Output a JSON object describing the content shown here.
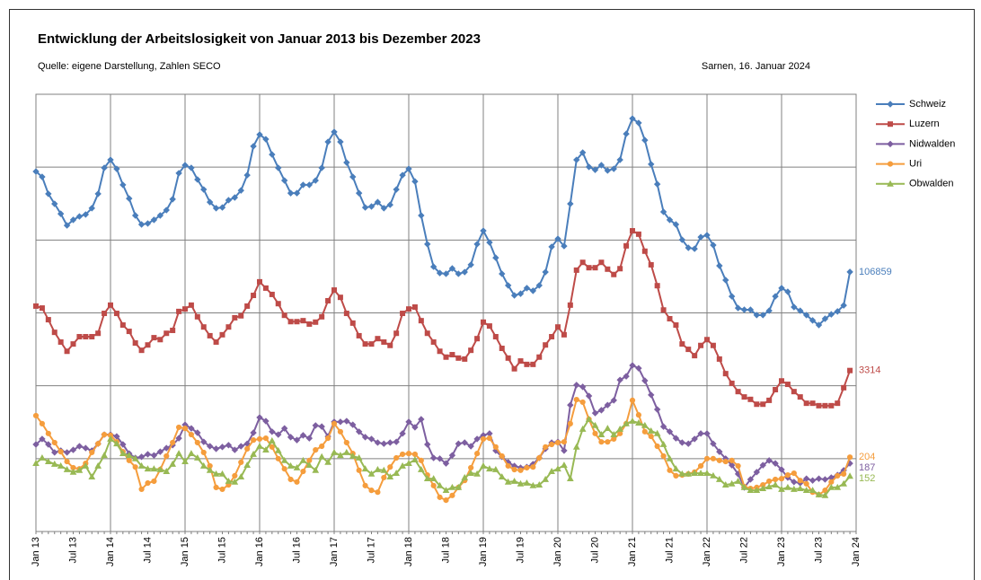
{
  "chart_data": {
    "type": "line",
    "title": "Entwicklung der Arbeitslosigkeit von Januar 2013 bis Dezember 2023",
    "subtitle": "Quelle: eigene Darstellung, Zahlen SECO",
    "note": "Sarnen, 16. Januar 2024",
    "grid": true,
    "legend": "right",
    "categories": [
      "Jan 13",
      null,
      null,
      null,
      null,
      null,
      "Jul 13",
      null,
      null,
      null,
      null,
      null,
      "Jan 14",
      null,
      null,
      null,
      null,
      null,
      "Jul 14",
      null,
      null,
      null,
      null,
      null,
      "Jan 15",
      null,
      null,
      null,
      null,
      null,
      "Jul 15",
      null,
      null,
      null,
      null,
      null,
      "Jan 16",
      null,
      null,
      null,
      null,
      null,
      "Jul 16",
      null,
      null,
      null,
      null,
      null,
      "Jan 17",
      null,
      null,
      null,
      null,
      null,
      "Jul 17",
      null,
      null,
      null,
      null,
      null,
      "Jan 18",
      null,
      null,
      null,
      null,
      null,
      "Jul 18",
      null,
      null,
      null,
      null,
      null,
      "Jan 19",
      null,
      null,
      null,
      null,
      null,
      "Jul 19",
      null,
      null,
      null,
      null,
      null,
      "Jan 20",
      null,
      null,
      null,
      null,
      null,
      "Jul 20",
      null,
      null,
      null,
      null,
      null,
      "Jan 21",
      null,
      null,
      null,
      null,
      null,
      "Jul 21",
      null,
      null,
      null,
      null,
      null,
      "Jan 22",
      null,
      null,
      null,
      null,
      null,
      "Jul 22",
      null,
      null,
      null,
      null,
      null,
      "Jan 23",
      null,
      null,
      null,
      null,
      null,
      "Jul 23",
      null,
      null,
      null,
      null,
      null,
      "Jan 24"
    ],
    "series": [
      {
        "name": "Schweiz",
        "color": "#4a7ebb",
        "marker": "diamond",
        "ylim": [
          0,
          180000
        ],
        "values": [
          148200,
          146000,
          139000,
          134900,
          130800,
          126000,
          128300,
          129700,
          130500,
          133100,
          139000,
          149700,
          153000,
          149300,
          142700,
          137100,
          130100,
          126400,
          126800,
          128300,
          130100,
          132300,
          136800,
          147500,
          150800,
          149700,
          144900,
          140800,
          135600,
          133100,
          133400,
          136400,
          137500,
          140400,
          146700,
          158600,
          163400,
          161500,
          155200,
          149700,
          144500,
          139300,
          139300,
          142700,
          142700,
          144500,
          149700,
          160400,
          164500,
          160400,
          151900,
          146000,
          139300,
          133400,
          133800,
          135600,
          133100,
          134500,
          140800,
          146700,
          149300,
          144100,
          130100,
          118300,
          109000,
          106400,
          106100,
          108300,
          106100,
          106800,
          109800,
          118300,
          123800,
          119000,
          112700,
          106100,
          101300,
          97200,
          97900,
          100200,
          99100,
          101300,
          106800,
          117200,
          120500,
          117500,
          134900,
          153000,
          156000,
          150100,
          148900,
          150800,
          148600,
          149300,
          153000,
          163700,
          170000,
          168200,
          161100,
          151200,
          143000,
          131600,
          128300,
          126400,
          120100,
          116800,
          116400,
          121200,
          122000,
          117900,
          109400,
          103500,
          96800,
          92000,
          91300,
          91300,
          89100,
          89100,
          90900,
          96800,
          100200,
          98700,
          92400,
          90900,
          89100,
          86900,
          85000,
          87600,
          89400,
          90600,
          93100,
          106859,
          null
        ]
      },
      {
        "name": "Luzern",
        "color": "#be4b48",
        "marker": "square",
        "ylim": [
          0,
          9000
        ],
        "values": [
          4640,
          4600,
          4360,
          4100,
          3900,
          3710,
          3860,
          4010,
          4010,
          4010,
          4080,
          4490,
          4660,
          4490,
          4250,
          4120,
          3880,
          3730,
          3840,
          3990,
          3950,
          4080,
          4140,
          4530,
          4580,
          4660,
          4420,
          4210,
          4030,
          3900,
          4050,
          4210,
          4400,
          4440,
          4640,
          4860,
          5140,
          5010,
          4880,
          4690,
          4450,
          4320,
          4320,
          4340,
          4270,
          4310,
          4420,
          4750,
          4970,
          4820,
          4490,
          4290,
          4030,
          3860,
          3860,
          3970,
          3900,
          3830,
          4080,
          4490,
          4580,
          4620,
          4340,
          4080,
          3900,
          3710,
          3590,
          3640,
          3570,
          3550,
          3730,
          3970,
          4310,
          4230,
          4010,
          3770,
          3570,
          3350,
          3510,
          3440,
          3440,
          3590,
          3840,
          4010,
          4210,
          4050,
          4660,
          5380,
          5540,
          5430,
          5430,
          5540,
          5400,
          5290,
          5410,
          5880,
          6190,
          6120,
          5770,
          5490,
          5060,
          4560,
          4380,
          4250,
          3860,
          3750,
          3620,
          3830,
          3950,
          3830,
          3550,
          3250,
          3050,
          2880,
          2770,
          2720,
          2620,
          2620,
          2700,
          2920,
          3100,
          3030,
          2880,
          2770,
          2640,
          2640,
          2590,
          2590,
          2590,
          2640,
          2960,
          3314,
          null
        ]
      },
      {
        "name": "Nidwalden",
        "color": "#7d5fa0",
        "marker": "diamond",
        "ylim": [
          0,
          1200
        ],
        "values": [
          239,
          254,
          239,
          217,
          222,
          217,
          224,
          234,
          229,
          222,
          241,
          266,
          266,
          261,
          239,
          214,
          202,
          205,
          212,
          209,
          219,
          229,
          237,
          256,
          293,
          283,
          271,
          246,
          234,
          227,
          232,
          237,
          224,
          234,
          241,
          271,
          313,
          303,
          274,
          266,
          283,
          259,
          251,
          264,
          256,
          291,
          288,
          261,
          301,
          301,
          303,
          293,
          274,
          259,
          254,
          244,
          241,
          244,
          246,
          269,
          301,
          286,
          308,
          239,
          202,
          200,
          187,
          209,
          241,
          244,
          234,
          254,
          264,
          269,
          222,
          205,
          190,
          180,
          175,
          177,
          185,
          202,
          227,
          244,
          246,
          222,
          347,
          402,
          397,
          372,
          325,
          333,
          347,
          360,
          416,
          426,
          456,
          448,
          414,
          375,
          335,
          288,
          274,
          256,
          244,
          241,
          254,
          269,
          269,
          241,
          219,
          200,
          182,
          158,
          121,
          143,
          163,
          182,
          195,
          187,
          170,
          148,
          136,
          133,
          145,
          140,
          145,
          143,
          148,
          155,
          168,
          187,
          null
        ]
      },
      {
        "name": "Uri",
        "color": "#f59d3d",
        "marker": "circle",
        "ylim": [
          0,
          1200
        ],
        "values": [
          318,
          296,
          269,
          244,
          219,
          192,
          175,
          172,
          187,
          217,
          241,
          266,
          264,
          246,
          219,
          195,
          177,
          116,
          133,
          138,
          170,
          207,
          244,
          286,
          283,
          266,
          244,
          217,
          180,
          121,
          116,
          128,
          153,
          190,
          227,
          251,
          254,
          256,
          232,
          200,
          172,
          143,
          136,
          165,
          195,
          224,
          234,
          256,
          296,
          274,
          244,
          214,
          168,
          126,
          113,
          108,
          148,
          177,
          202,
          212,
          214,
          212,
          195,
          155,
          126,
          94,
          86,
          99,
          121,
          140,
          175,
          214,
          254,
          256,
          232,
          207,
          180,
          170,
          168,
          175,
          177,
          202,
          232,
          239,
          244,
          246,
          296,
          362,
          355,
          308,
          269,
          246,
          246,
          254,
          269,
          296,
          360,
          320,
          274,
          261,
          234,
          207,
          168,
          153,
          155,
          158,
          163,
          180,
          200,
          200,
          195,
          192,
          195,
          180,
          123,
          118,
          121,
          128,
          138,
          143,
          145,
          155,
          160,
          140,
          131,
          108,
          101,
          113,
          136,
          153,
          158,
          204,
          null
        ]
      },
      {
        "name": "Obwalden",
        "color": "#98b954",
        "marker": "triangle",
        "ylim": [
          0,
          1200
        ],
        "values": [
          187,
          202,
          192,
          185,
          180,
          170,
          163,
          168,
          180,
          150,
          180,
          209,
          254,
          241,
          214,
          209,
          200,
          180,
          172,
          172,
          170,
          165,
          185,
          214,
          192,
          214,
          202,
          180,
          168,
          158,
          158,
          138,
          136,
          150,
          182,
          212,
          234,
          224,
          249,
          222,
          195,
          180,
          175,
          195,
          182,
          168,
          205,
          190,
          217,
          209,
          217,
          207,
          202,
          172,
          158,
          170,
          168,
          150,
          160,
          180,
          187,
          197,
          170,
          145,
          145,
          126,
          113,
          121,
          121,
          148,
          160,
          158,
          180,
          172,
          170,
          150,
          136,
          138,
          131,
          133,
          126,
          128,
          143,
          165,
          172,
          182,
          145,
          232,
          281,
          308,
          291,
          266,
          283,
          266,
          281,
          296,
          303,
          298,
          291,
          276,
          269,
          239,
          200,
          172,
          158,
          158,
          160,
          160,
          160,
          153,
          143,
          128,
          131,
          138,
          121,
          113,
          113,
          118,
          123,
          128,
          116,
          121,
          116,
          118,
          113,
          113,
          101,
          99,
          121,
          121,
          131,
          152,
          null
        ]
      }
    ]
  }
}
